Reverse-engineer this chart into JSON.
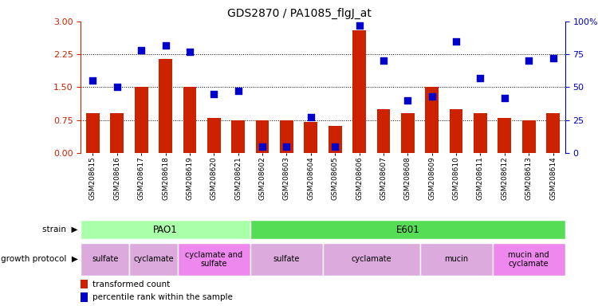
{
  "title": "GDS2870 / PA1085_flgJ_at",
  "samples": [
    "GSM208615",
    "GSM208616",
    "GSM208617",
    "GSM208618",
    "GSM208619",
    "GSM208620",
    "GSM208621",
    "GSM208602",
    "GSM208603",
    "GSM208604",
    "GSM208605",
    "GSM208606",
    "GSM208607",
    "GSM208608",
    "GSM208609",
    "GSM208610",
    "GSM208611",
    "GSM208612",
    "GSM208613",
    "GSM208614"
  ],
  "transformed_count": [
    0.9,
    0.9,
    1.5,
    2.15,
    1.5,
    0.8,
    0.75,
    0.75,
    0.75,
    0.7,
    0.62,
    2.8,
    1.0,
    0.9,
    1.5,
    1.0,
    0.9,
    0.8,
    0.75,
    0.9
  ],
  "percentile_rank": [
    55,
    50,
    78,
    82,
    77,
    45,
    47,
    5,
    5,
    27,
    5,
    97,
    70,
    40,
    43,
    85,
    57,
    42,
    70,
    72
  ],
  "bar_color": "#cc2200",
  "dot_color": "#0000cc",
  "ylim_left": [
    0,
    3.0
  ],
  "ylim_right": [
    0,
    100
  ],
  "yticks_left": [
    0,
    0.75,
    1.5,
    2.25,
    3.0
  ],
  "yticks_right": [
    0,
    25,
    50,
    75,
    100
  ],
  "grid_lines": [
    0.75,
    1.5,
    2.25
  ],
  "strain_groups": [
    {
      "label": "PAO1",
      "start": 0,
      "end": 6,
      "color": "#aaffaa"
    },
    {
      "label": "E601",
      "start": 7,
      "end": 19,
      "color": "#55dd55"
    }
  ],
  "protocol_groups": [
    {
      "label": "sulfate",
      "start": 0,
      "end": 1,
      "color": "#ddaadd"
    },
    {
      "label": "cyclamate",
      "start": 2,
      "end": 3,
      "color": "#ddaadd"
    },
    {
      "label": "cyclamate and\nsulfate",
      "start": 4,
      "end": 6,
      "color": "#ee88ee"
    },
    {
      "label": "sulfate",
      "start": 7,
      "end": 9,
      "color": "#ddaadd"
    },
    {
      "label": "cyclamate",
      "start": 10,
      "end": 13,
      "color": "#ddaadd"
    },
    {
      "label": "mucin",
      "start": 14,
      "end": 16,
      "color": "#ddaadd"
    },
    {
      "label": "mucin and\ncyclamate",
      "start": 17,
      "end": 19,
      "color": "#ee88ee"
    }
  ],
  "background_color": "#ffffff",
  "tick_label_color_left": "#cc2200",
  "tick_label_color_right": "#0000cc",
  "legend_items": [
    {
      "label": "transformed count",
      "color": "#cc2200"
    },
    {
      "label": "percentile rank within the sample",
      "color": "#0000cc"
    }
  ]
}
